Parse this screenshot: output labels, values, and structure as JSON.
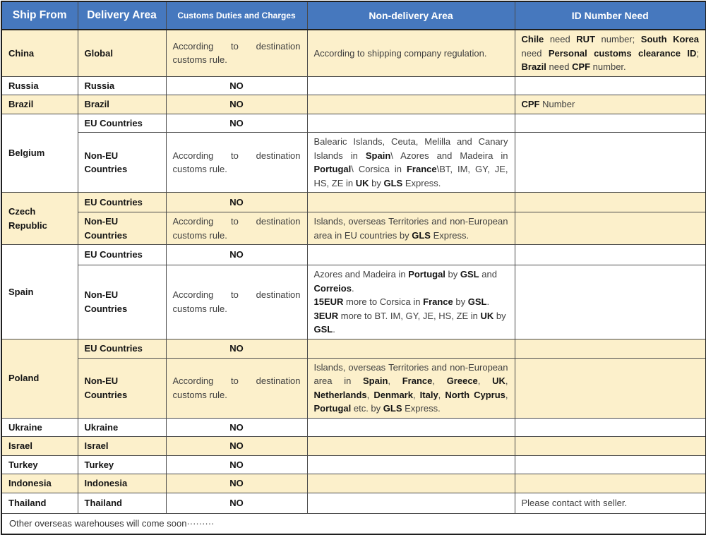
{
  "colors": {
    "header_bg": "#4678be",
    "header_text": "#ffffff",
    "row_cream": "#fcf0cb",
    "row_white": "#ffffff",
    "border_inner": "#4a4a4a",
    "border_outer": "#1f1f1f"
  },
  "header": {
    "ship_from": "Ship From",
    "delivery_area": "Delivery Area",
    "customs": "Customs Duties and Charges",
    "non_delivery": "Non-delivery Area",
    "id_number": "ID Number Need"
  },
  "rows": {
    "china": {
      "ship": "China",
      "area": "Global",
      "customs": "According to destination customs rule.",
      "nondelivery": "According to shipping company regulation.",
      "id": [
        {
          "t": "Chile",
          "b": true
        },
        {
          "t": " need ",
          "b": false
        },
        {
          "t": "RUT",
          "b": true
        },
        {
          "t": " number; ",
          "b": false
        },
        {
          "t": "South Korea",
          "b": true
        },
        {
          "t": " need ",
          "b": false
        },
        {
          "t": "Personal customs clearance ID",
          "b": true
        },
        {
          "t": "; ",
          "b": false
        },
        {
          "t": "Brazil",
          "b": true
        },
        {
          "t": " need ",
          "b": false
        },
        {
          "t": "CPF",
          "b": true
        },
        {
          "t": " number.",
          "b": false
        }
      ]
    },
    "russia": {
      "ship": "Russia",
      "area": "Russia",
      "customs": "NO"
    },
    "brazil": {
      "ship": "Brazil",
      "area": "Brazil",
      "customs": "NO",
      "id": [
        {
          "t": "CPF",
          "b": true
        },
        {
          "t": " Number",
          "b": false
        }
      ]
    },
    "belgium": {
      "ship": "Belgium",
      "eu_area": "EU Countries",
      "eu_customs": "NO",
      "noneu_area": "Non-EU Countries",
      "noneu_customs": "According to destination customs rule.",
      "noneu_nondelivery": [
        {
          "t": "Balearic Islands, Ceuta, Melilla and Canary Islands in ",
          "b": false
        },
        {
          "t": "Spain",
          "b": true
        },
        {
          "t": "\\ Azores and Madeira in ",
          "b": false
        },
        {
          "t": "Portugal",
          "b": true
        },
        {
          "t": "\\ Corsica in ",
          "b": false
        },
        {
          "t": "France",
          "b": true
        },
        {
          "t": "\\BT, IM, GY, JE, HS, ZE in ",
          "b": false
        },
        {
          "t": "UK",
          "b": true
        },
        {
          "t": " by ",
          "b": false
        },
        {
          "t": "GLS",
          "b": true
        },
        {
          "t": " Express.",
          "b": false
        }
      ]
    },
    "czech": {
      "ship": "Czech Republic",
      "eu_area": "EU Countries",
      "eu_customs": "NO",
      "noneu_area": "Non-EU Countries",
      "noneu_customs": "According to destination customs rule.",
      "noneu_nondelivery": [
        {
          "t": "Islands, overseas Territories and non-European area in EU countries by ",
          "b": false
        },
        {
          "t": "GLS",
          "b": true
        },
        {
          "t": " Express.",
          "b": false
        }
      ]
    },
    "spain": {
      "ship": "Spain",
      "eu_area": "EU Countries",
      "eu_customs": "NO",
      "noneu_area": "Non-EU Countries",
      "noneu_customs": "According to destination customs rule.",
      "noneu_nondelivery": [
        {
          "t": "Azores and Madeira in ",
          "b": false
        },
        {
          "t": "Portugal",
          "b": true
        },
        {
          "t": " by ",
          "b": false
        },
        {
          "t": "GSL",
          "b": true
        },
        {
          "t": " and ",
          "b": false
        },
        {
          "t": "Correios",
          "b": true
        },
        {
          "t": ".",
          "b": false
        },
        {
          "t": "\n"
        },
        {
          "t": "15EUR",
          "b": true
        },
        {
          "t": " more to Corsica in ",
          "b": false
        },
        {
          "t": "France",
          "b": true
        },
        {
          "t": " by ",
          "b": false
        },
        {
          "t": "GSL",
          "b": true
        },
        {
          "t": ".",
          "b": false
        },
        {
          "t": "\n"
        },
        {
          "t": "3EUR",
          "b": true
        },
        {
          "t": " more to BT. IM, GY, JE, HS, ZE in ",
          "b": false
        },
        {
          "t": "UK",
          "b": true
        },
        {
          "t": " by ",
          "b": false
        },
        {
          "t": "GSL",
          "b": true
        },
        {
          "t": ".",
          "b": false
        }
      ]
    },
    "poland": {
      "ship": "Poland",
      "eu_area": "EU Countries",
      "eu_customs": "NO",
      "noneu_area": "Non-EU Countries",
      "noneu_customs": "According to destination customs rule.",
      "noneu_nondelivery": [
        {
          "t": "Islands, overseas Territories and non-European area in ",
          "b": false
        },
        {
          "t": "Spain",
          "b": true
        },
        {
          "t": ", ",
          "b": false
        },
        {
          "t": "France",
          "b": true
        },
        {
          "t": ", ",
          "b": false
        },
        {
          "t": "Greece",
          "b": true
        },
        {
          "t": ", ",
          "b": false
        },
        {
          "t": "UK",
          "b": true
        },
        {
          "t": ", ",
          "b": false
        },
        {
          "t": "Netherlands",
          "b": true
        },
        {
          "t": ", ",
          "b": false
        },
        {
          "t": "Denmark",
          "b": true
        },
        {
          "t": ", ",
          "b": false
        },
        {
          "t": "Italy",
          "b": true
        },
        {
          "t": ", ",
          "b": false
        },
        {
          "t": "North Cyprus",
          "b": true
        },
        {
          "t": ", ",
          "b": false
        },
        {
          "t": "Portugal",
          "b": true
        },
        {
          "t": " etc. by ",
          "b": false
        },
        {
          "t": "GLS",
          "b": true
        },
        {
          "t": " Express.",
          "b": false
        }
      ]
    },
    "ukraine": {
      "ship": "Ukraine",
      "area": "Ukraine",
      "customs": "NO"
    },
    "israel": {
      "ship": "Israel",
      "area": "Israel",
      "customs": "NO"
    },
    "turkey": {
      "ship": "Turkey",
      "area": "Turkey",
      "customs": "NO"
    },
    "indonesia": {
      "ship": "Indonesia",
      "area": "Indonesia",
      "customs": "NO"
    },
    "thailand": {
      "ship": "Thailand",
      "area": "Thailand",
      "customs": "NO",
      "id": "Please contact with seller."
    }
  },
  "footer": {
    "note": "Other overseas warehouses will come soon·········"
  }
}
